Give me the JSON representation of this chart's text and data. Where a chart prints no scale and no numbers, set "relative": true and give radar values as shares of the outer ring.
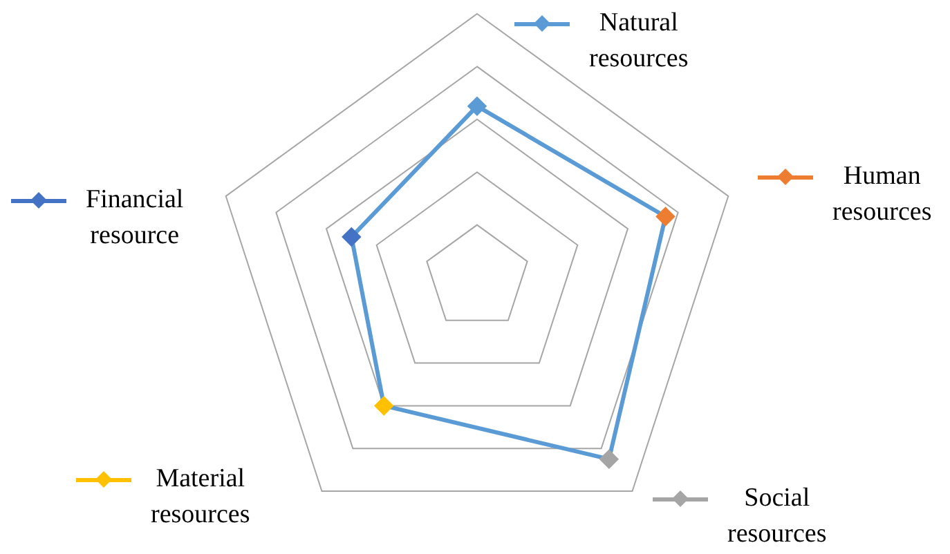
{
  "chart_data": {
    "type": "radar",
    "relative": true,
    "marker": "diamond",
    "categories": [
      "Natural resources",
      "Human resources",
      "Social resources",
      "Material resources",
      "Financial resource"
    ],
    "series": [
      {
        "colors": [
          "#5b9bd5",
          "#ed7d31",
          "#a5a5a5",
          "#ffc000",
          "#4472c4"
        ],
        "values": [
          0.65,
          0.75,
          0.85,
          0.6,
          0.5
        ]
      }
    ]
  }
}
